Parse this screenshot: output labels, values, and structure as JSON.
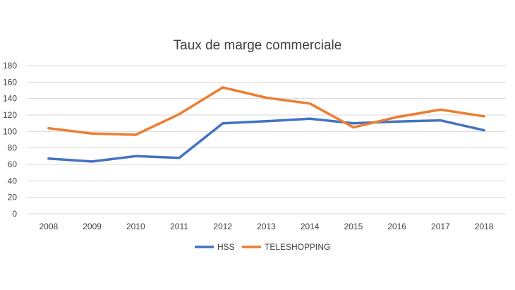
{
  "chart_data": {
    "type": "line",
    "title": "Taux de marge commerciale",
    "categories": [
      "2008",
      "2009",
      "2010",
      "2011",
      "2012",
      "2013",
      "2014",
      "2015",
      "2016",
      "2017",
      "2018"
    ],
    "series": [
      {
        "name": "HSS",
        "color": "#4472c4",
        "values": [
          67,
          63.5,
          70,
          68,
          110,
          112.5,
          115.5,
          110,
          112,
          113.5,
          101.5
        ]
      },
      {
        "name": "TELESHOPPING",
        "color": "#ed7d31",
        "values": [
          104,
          97.5,
          96,
          121,
          153.5,
          141,
          134,
          105,
          117.5,
          126.5,
          118.5
        ]
      }
    ],
    "ylim": [
      0,
      180
    ],
    "yticks": [
      "0",
      "20",
      "40",
      "60",
      "80",
      "100",
      "120",
      "140",
      "160",
      "180"
    ],
    "grid": true,
    "legend_position": "bottom"
  }
}
